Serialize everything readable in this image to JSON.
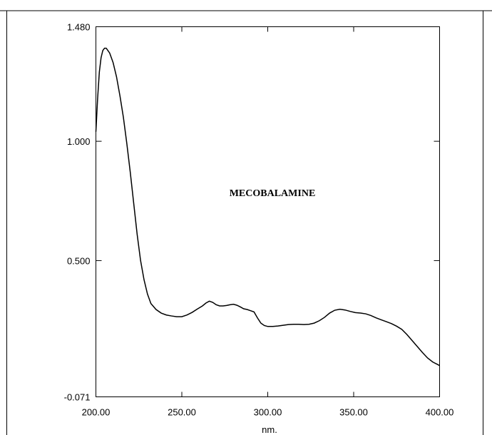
{
  "chart_data": {
    "type": "line",
    "title": "",
    "xlabel": "nm.",
    "ylabel": "",
    "xlim": [
      200,
      400
    ],
    "ylim": [
      -0.071,
      1.48
    ],
    "x_tick_labels": [
      "200.00",
      "250.00",
      "300.00",
      "350.00",
      "400.00"
    ],
    "x_ticks": [
      200,
      250,
      300,
      350,
      400
    ],
    "y_tick_labels": [
      "-0.071",
      "0.500",
      "1.000",
      "1.480"
    ],
    "y_ticks": [
      -0.071,
      0.5,
      1.0,
      1.48
    ],
    "annotation": "MECOBALAMINE",
    "grid": false,
    "series": [
      {
        "color": "#000000",
        "x": [
          200,
          201,
          202,
          203,
          204,
          205,
          206,
          207,
          208,
          209,
          210,
          212,
          214,
          216,
          218,
          220,
          222,
          224,
          226,
          228,
          230,
          232,
          235,
          238,
          241,
          244,
          247,
          250,
          253,
          256,
          259,
          262,
          264,
          266,
          268,
          270,
          272,
          274,
          276,
          278,
          280,
          282,
          284,
          286,
          288,
          290,
          292,
          294,
          296,
          298,
          300,
          303,
          306,
          309,
          312,
          315,
          318,
          321,
          324,
          327,
          330,
          333,
          336,
          339,
          342,
          345,
          348,
          351,
          354,
          357,
          360,
          363,
          366,
          369,
          372,
          375,
          378,
          381,
          384,
          387,
          390,
          393,
          396,
          399,
          400
        ],
        "y": [
          1.04,
          1.18,
          1.29,
          1.35,
          1.38,
          1.39,
          1.39,
          1.38,
          1.37,
          1.35,
          1.33,
          1.27,
          1.19,
          1.1,
          0.99,
          0.87,
          0.74,
          0.61,
          0.5,
          0.42,
          0.36,
          0.32,
          0.295,
          0.28,
          0.272,
          0.268,
          0.265,
          0.265,
          0.272,
          0.283,
          0.297,
          0.31,
          0.322,
          0.33,
          0.325,
          0.315,
          0.31,
          0.31,
          0.312,
          0.315,
          0.317,
          0.313,
          0.306,
          0.298,
          0.295,
          0.29,
          0.285,
          0.26,
          0.238,
          0.228,
          0.224,
          0.224,
          0.226,
          0.229,
          0.232,
          0.233,
          0.233,
          0.232,
          0.233,
          0.238,
          0.248,
          0.262,
          0.28,
          0.292,
          0.296,
          0.293,
          0.287,
          0.282,
          0.28,
          0.277,
          0.27,
          0.26,
          0.252,
          0.244,
          0.236,
          0.225,
          0.212,
          0.19,
          0.165,
          0.14,
          0.115,
          0.092,
          0.075,
          0.064,
          0.06
        ]
      }
    ]
  }
}
